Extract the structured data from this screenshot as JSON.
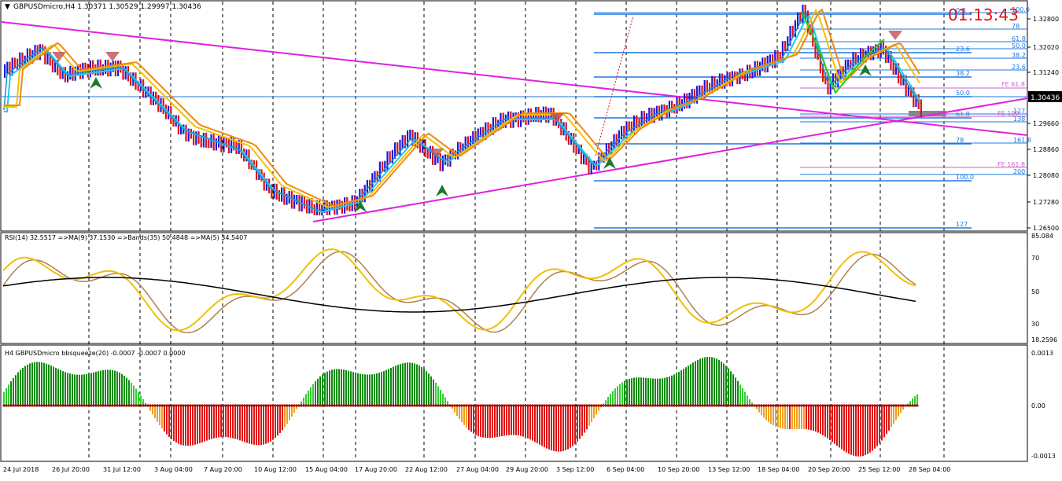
{
  "main": {
    "header": "GBPUSDmicro,H4  1.30371 1.30529 1.29997 1.30436",
    "timer": "01:13:43",
    "price_labels": [
      "1.32800",
      "1.32020",
      "1.31240",
      "1.30436",
      "1.29660",
      "1.28860",
      "1.28080",
      "1.27280",
      "1.26500"
    ],
    "current_price": "1.30436",
    "fib_labels_a": [
      "100.0",
      "78",
      "61.8",
      "50.0",
      "38.2",
      "23.6"
    ],
    "fib_labels_b": [
      "0.0",
      "23.6",
      "38.2",
      "50.0",
      "61.8",
      "78",
      "100.0",
      "127"
    ],
    "fib_labels_c": [
      "127",
      "FE 100",
      "138",
      "161.8",
      "FE 161.8",
      "200"
    ],
    "fe_label": "FE 61.8",
    "colors": {
      "bull": "#1a1adb",
      "bear": "#e01010",
      "ma_fast": "#22c9ef",
      "ma_slow": "#f08a10",
      "ma_mid": "#f5c000",
      "trend": "#e020e0",
      "fib": "#1e78e0",
      "fe": "#d060d0"
    }
  },
  "rsi": {
    "header": "RSI(14) 32.5517  =>MA(9) 37.1530  =>Bands(35) 50.4848  =>MA(5) 34.5407",
    "labels": [
      "85.084",
      "70",
      "50",
      "30",
      "18.2596"
    ]
  },
  "squeeze": {
    "header": "H4 GBPUSDmicro bbsqueeze(20) -0.0007 -0.0007 0.0000",
    "labels": [
      "0.0013",
      "0.00",
      "-0.0013"
    ]
  },
  "time_axis": {
    "labels": [
      "24 Jul 2018",
      "26 Jul 20:00",
      "31 Jul 12:00",
      "3 Aug 04:00",
      "7 Aug 20:00",
      "10 Aug 12:00",
      "15 Aug 04:00",
      "17 Aug 20:00",
      "22 Aug 12:00",
      "27 Aug 04:00",
      "29 Aug 20:00",
      "3 Sep 12:00",
      "6 Sep 04:00",
      "10 Sep 20:00",
      "13 Sep 12:00",
      "18 Sep 04:00",
      "20 Sep 20:00",
      "25 Sep 12:00",
      "28 Sep 04:00"
    ]
  }
}
